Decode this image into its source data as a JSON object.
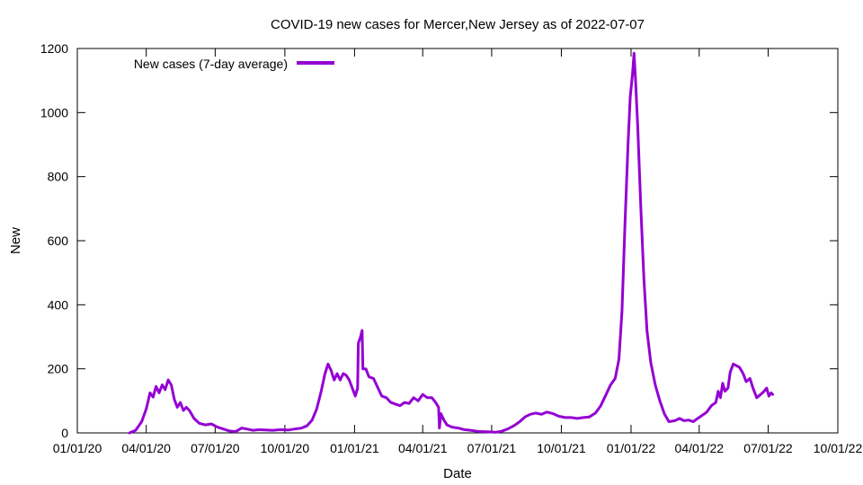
{
  "chart_data": {
    "type": "line",
    "title": "COVID-19 new cases for Mercer,New Jersey as of 2022-07-07",
    "xlabel": "Date",
    "ylabel": "New",
    "xlim": [
      "2020-01-01",
      "2022-10-01"
    ],
    "ylim": [
      0,
      1200
    ],
    "x_ticks": [
      "01/01/20",
      "04/01/20",
      "07/01/20",
      "10/01/20",
      "01/01/21",
      "04/01/21",
      "07/01/21",
      "10/01/21",
      "01/01/22",
      "04/01/22",
      "07/01/22",
      "10/01/22"
    ],
    "y_ticks": [
      0,
      200,
      400,
      600,
      800,
      1000,
      1200
    ],
    "grid": false,
    "legend_position": "top-left",
    "series": [
      {
        "name": "New cases (7-day average)",
        "color": "#9400d3",
        "points": [
          [
            "2020-03-10",
            0
          ],
          [
            "2020-03-18",
            8
          ],
          [
            "2020-03-26",
            35
          ],
          [
            "2020-04-01",
            75
          ],
          [
            "2020-04-06",
            125
          ],
          [
            "2020-04-10",
            112
          ],
          [
            "2020-04-14",
            145
          ],
          [
            "2020-04-18",
            125
          ],
          [
            "2020-04-22",
            150
          ],
          [
            "2020-04-26",
            135
          ],
          [
            "2020-04-30",
            165
          ],
          [
            "2020-05-04",
            150
          ],
          [
            "2020-05-08",
            105
          ],
          [
            "2020-05-12",
            80
          ],
          [
            "2020-05-16",
            95
          ],
          [
            "2020-05-20",
            70
          ],
          [
            "2020-05-24",
            80
          ],
          [
            "2020-05-28",
            70
          ],
          [
            "2020-06-03",
            45
          ],
          [
            "2020-06-10",
            30
          ],
          [
            "2020-06-18",
            25
          ],
          [
            "2020-06-26",
            28
          ],
          [
            "2020-07-04",
            18
          ],
          [
            "2020-07-12",
            12
          ],
          [
            "2020-07-20",
            6
          ],
          [
            "2020-07-28",
            4
          ],
          [
            "2020-08-05",
            15
          ],
          [
            "2020-08-12",
            12
          ],
          [
            "2020-08-20",
            8
          ],
          [
            "2020-08-28",
            10
          ],
          [
            "2020-09-06",
            9
          ],
          [
            "2020-09-15",
            8
          ],
          [
            "2020-09-25",
            10
          ],
          [
            "2020-10-05",
            9
          ],
          [
            "2020-10-14",
            12
          ],
          [
            "2020-10-23",
            15
          ],
          [
            "2020-10-30",
            22
          ],
          [
            "2020-11-06",
            40
          ],
          [
            "2020-11-12",
            75
          ],
          [
            "2020-11-18",
            130
          ],
          [
            "2020-11-23",
            185
          ],
          [
            "2020-11-27",
            215
          ],
          [
            "2020-12-01",
            195
          ],
          [
            "2020-12-05",
            165
          ],
          [
            "2020-12-09",
            185
          ],
          [
            "2020-12-13",
            165
          ],
          [
            "2020-12-17",
            185
          ],
          [
            "2020-12-21",
            180
          ],
          [
            "2020-12-25",
            165
          ],
          [
            "2020-12-29",
            140
          ],
          [
            "2021-01-02",
            115
          ],
          [
            "2021-01-05",
            140
          ],
          [
            "2021-01-06",
            280
          ],
          [
            "2021-01-09",
            300
          ],
          [
            "2021-01-11",
            320
          ],
          [
            "2021-01-12",
            200
          ],
          [
            "2021-01-16",
            200
          ],
          [
            "2021-01-20",
            175
          ],
          [
            "2021-01-26",
            170
          ],
          [
            "2021-02-01",
            140
          ],
          [
            "2021-02-06",
            115
          ],
          [
            "2021-02-12",
            110
          ],
          [
            "2021-02-18",
            95
          ],
          [
            "2021-02-24",
            90
          ],
          [
            "2021-03-02",
            85
          ],
          [
            "2021-03-08",
            95
          ],
          [
            "2021-03-14",
            92
          ],
          [
            "2021-03-20",
            110
          ],
          [
            "2021-03-26",
            100
          ],
          [
            "2021-04-01",
            120
          ],
          [
            "2021-04-07",
            110
          ],
          [
            "2021-04-13",
            110
          ],
          [
            "2021-04-18",
            95
          ],
          [
            "2021-04-22",
            80
          ],
          [
            "2021-04-23",
            15
          ],
          [
            "2021-04-25",
            60
          ],
          [
            "2021-04-29",
            40
          ],
          [
            "2021-05-03",
            25
          ],
          [
            "2021-05-10",
            18
          ],
          [
            "2021-05-18",
            15
          ],
          [
            "2021-05-26",
            10
          ],
          [
            "2021-06-03",
            8
          ],
          [
            "2021-06-12",
            5
          ],
          [
            "2021-06-20",
            4
          ],
          [
            "2021-06-28",
            3
          ],
          [
            "2021-07-06",
            2
          ],
          [
            "2021-07-14",
            5
          ],
          [
            "2021-07-22",
            12
          ],
          [
            "2021-07-30",
            22
          ],
          [
            "2021-08-07",
            35
          ],
          [
            "2021-08-14",
            50
          ],
          [
            "2021-08-21",
            58
          ],
          [
            "2021-08-28",
            62
          ],
          [
            "2021-09-05",
            58
          ],
          [
            "2021-09-12",
            65
          ],
          [
            "2021-09-20",
            60
          ],
          [
            "2021-09-28",
            52
          ],
          [
            "2021-10-06",
            48
          ],
          [
            "2021-10-14",
            48
          ],
          [
            "2021-10-22",
            45
          ],
          [
            "2021-10-30",
            48
          ],
          [
            "2021-11-07",
            50
          ],
          [
            "2021-11-15",
            62
          ],
          [
            "2021-11-22",
            85
          ],
          [
            "2021-11-29",
            120
          ],
          [
            "2021-12-05",
            150
          ],
          [
            "2021-12-11",
            170
          ],
          [
            "2021-12-16",
            230
          ],
          [
            "2021-12-20",
            380
          ],
          [
            "2021-12-24",
            650
          ],
          [
            "2021-12-28",
            900
          ],
          [
            "2021-12-31",
            1050
          ],
          [
            "2022-01-03",
            1120
          ],
          [
            "2022-01-05",
            1185
          ],
          [
            "2022-01-07",
            1100
          ],
          [
            "2022-01-10",
            950
          ],
          [
            "2022-01-14",
            700
          ],
          [
            "2022-01-18",
            480
          ],
          [
            "2022-01-22",
            320
          ],
          [
            "2022-01-27",
            220
          ],
          [
            "2022-02-02",
            150
          ],
          [
            "2022-02-08",
            100
          ],
          [
            "2022-02-14",
            60
          ],
          [
            "2022-02-20",
            35
          ],
          [
            "2022-02-28",
            38
          ],
          [
            "2022-03-06",
            45
          ],
          [
            "2022-03-12",
            38
          ],
          [
            "2022-03-18",
            40
          ],
          [
            "2022-03-24",
            35
          ],
          [
            "2022-03-30",
            45
          ],
          [
            "2022-04-05",
            55
          ],
          [
            "2022-04-11",
            65
          ],
          [
            "2022-04-17",
            85
          ],
          [
            "2022-04-23",
            95
          ],
          [
            "2022-04-26",
            130
          ],
          [
            "2022-04-29",
            110
          ],
          [
            "2022-05-02",
            155
          ],
          [
            "2022-05-05",
            130
          ],
          [
            "2022-05-09",
            140
          ],
          [
            "2022-05-12",
            190
          ],
          [
            "2022-05-16",
            215
          ],
          [
            "2022-05-20",
            210
          ],
          [
            "2022-05-24",
            205
          ],
          [
            "2022-05-29",
            185
          ],
          [
            "2022-06-02",
            160
          ],
          [
            "2022-06-07",
            170
          ],
          [
            "2022-06-11",
            140
          ],
          [
            "2022-06-16",
            110
          ],
          [
            "2022-06-21",
            120
          ],
          [
            "2022-06-25",
            128
          ],
          [
            "2022-06-29",
            140
          ],
          [
            "2022-07-02",
            115
          ],
          [
            "2022-07-05",
            125
          ],
          [
            "2022-07-07",
            120
          ]
        ]
      }
    ]
  }
}
